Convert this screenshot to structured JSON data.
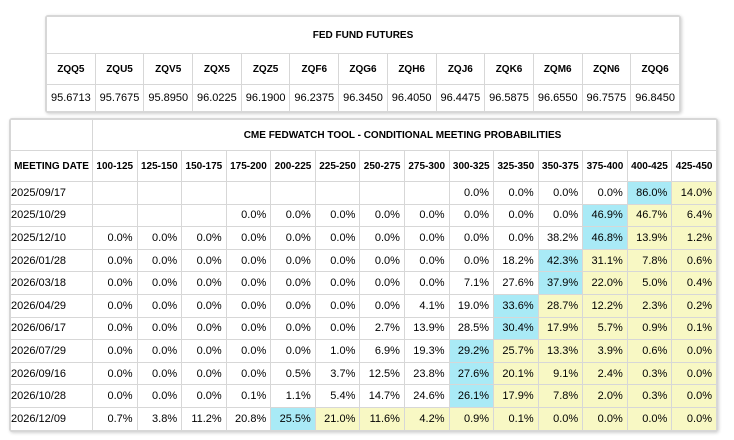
{
  "futures": {
    "title": "FED FUND FUTURES",
    "contracts": [
      "ZQQ5",
      "ZQU5",
      "ZQV5",
      "ZQX5",
      "ZQZ5",
      "ZQF6",
      "ZQG6",
      "ZQH6",
      "ZQJ6",
      "ZQK6",
      "ZQM6",
      "ZQN6",
      "ZQQ6"
    ],
    "prices": [
      "95.6713",
      "95.7675",
      "95.8950",
      "96.0225",
      "96.1900",
      "96.2375",
      "96.3450",
      "96.4050",
      "96.4475",
      "96.5875",
      "96.6550",
      "96.7575",
      "96.8450"
    ]
  },
  "probabilities": {
    "title": "CME FEDWATCH TOOL - CONDITIONAL MEETING PROBABILITIES",
    "date_header": "MEETING DATE",
    "ranges": [
      "100-125",
      "125-150",
      "150-175",
      "175-200",
      "200-225",
      "225-250",
      "250-275",
      "275-300",
      "300-325",
      "325-350",
      "350-375",
      "375-400",
      "400-425",
      "425-450"
    ],
    "highlight_colors": {
      "max": "#a9eaf6",
      "secondary": "#f8f8c4"
    },
    "rows": [
      {
        "date": "2025/09/17",
        "values": [
          "",
          "",
          "",
          "",
          "",
          "",
          "",
          "",
          "0.0%",
          "0.0%",
          "0.0%",
          "0.0%",
          "86.0%",
          "14.0%"
        ],
        "hi": 12,
        "mid": [
          13
        ]
      },
      {
        "date": "2025/10/29",
        "values": [
          "",
          "",
          "",
          "0.0%",
          "0.0%",
          "0.0%",
          "0.0%",
          "0.0%",
          "0.0%",
          "0.0%",
          "0.0%",
          "46.9%",
          "46.7%",
          "6.4%"
        ],
        "hi": 11,
        "mid": [
          12,
          13
        ]
      },
      {
        "date": "2025/12/10",
        "values": [
          "0.0%",
          "0.0%",
          "0.0%",
          "0.0%",
          "0.0%",
          "0.0%",
          "0.0%",
          "0.0%",
          "0.0%",
          "0.0%",
          "38.2%",
          "46.8%",
          "13.9%",
          "1.2%"
        ],
        "hi": 11,
        "mid": [
          12,
          13
        ]
      },
      {
        "date": "2026/01/28",
        "values": [
          "0.0%",
          "0.0%",
          "0.0%",
          "0.0%",
          "0.0%",
          "0.0%",
          "0.0%",
          "0.0%",
          "0.0%",
          "18.2%",
          "42.3%",
          "31.1%",
          "7.8%",
          "0.6%"
        ],
        "hi": 10,
        "mid": [
          11,
          12,
          13
        ]
      },
      {
        "date": "2026/03/18",
        "values": [
          "0.0%",
          "0.0%",
          "0.0%",
          "0.0%",
          "0.0%",
          "0.0%",
          "0.0%",
          "0.0%",
          "7.1%",
          "27.6%",
          "37.9%",
          "22.0%",
          "5.0%",
          "0.4%"
        ],
        "hi": 10,
        "mid": [
          11,
          12,
          13
        ]
      },
      {
        "date": "2026/04/29",
        "values": [
          "0.0%",
          "0.0%",
          "0.0%",
          "0.0%",
          "0.0%",
          "0.0%",
          "0.0%",
          "4.1%",
          "19.0%",
          "33.6%",
          "28.7%",
          "12.2%",
          "2.3%",
          "0.2%"
        ],
        "hi": 9,
        "mid": [
          10,
          11,
          12,
          13
        ]
      },
      {
        "date": "2026/06/17",
        "values": [
          "0.0%",
          "0.0%",
          "0.0%",
          "0.0%",
          "0.0%",
          "0.0%",
          "2.7%",
          "13.9%",
          "28.5%",
          "30.4%",
          "17.9%",
          "5.7%",
          "0.9%",
          "0.1%"
        ],
        "hi": 9,
        "mid": [
          10,
          11,
          12,
          13
        ]
      },
      {
        "date": "2026/07/29",
        "values": [
          "0.0%",
          "0.0%",
          "0.0%",
          "0.0%",
          "0.0%",
          "1.0%",
          "6.9%",
          "19.3%",
          "29.2%",
          "25.7%",
          "13.3%",
          "3.9%",
          "0.6%",
          "0.0%"
        ],
        "hi": 8,
        "mid": [
          9,
          10,
          11,
          12,
          13
        ]
      },
      {
        "date": "2026/09/16",
        "values": [
          "0.0%",
          "0.0%",
          "0.0%",
          "0.0%",
          "0.5%",
          "3.7%",
          "12.5%",
          "23.8%",
          "27.6%",
          "20.1%",
          "9.1%",
          "2.4%",
          "0.3%",
          "0.0%"
        ],
        "hi": 8,
        "mid": [
          9,
          10,
          11,
          12,
          13
        ]
      },
      {
        "date": "2026/10/28",
        "values": [
          "0.0%",
          "0.0%",
          "0.0%",
          "0.1%",
          "1.1%",
          "5.4%",
          "14.7%",
          "24.6%",
          "26.1%",
          "17.9%",
          "7.8%",
          "2.0%",
          "0.3%",
          "0.0%"
        ],
        "hi": 8,
        "mid": [
          9,
          10,
          11,
          12,
          13
        ]
      },
      {
        "date": "2026/12/09",
        "values": [
          "0.7%",
          "3.8%",
          "11.2%",
          "20.8%",
          "25.5%",
          "21.0%",
          "11.6%",
          "4.2%",
          "0.9%",
          "0.1%",
          "0.0%",
          "0.0%",
          "0.0%",
          "0.0%"
        ],
        "hi": 4,
        "mid": [
          5,
          6,
          7,
          8,
          9,
          10,
          11,
          12,
          13
        ]
      }
    ]
  }
}
